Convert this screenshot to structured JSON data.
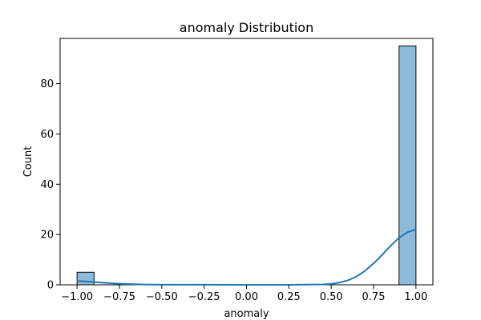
{
  "chart_data": {
    "type": "bar",
    "title": "anomaly Distribution",
    "xlabel": "anomaly",
    "ylabel": "Count",
    "xlim": [
      -1.1,
      1.1
    ],
    "ylim": [
      0,
      98
    ],
    "x_ticks": [
      -1.0,
      -0.75,
      -0.5,
      -0.25,
      0.0,
      0.25,
      0.5,
      0.75,
      1.0
    ],
    "x_tick_labels": [
      "−1.00",
      "−0.75",
      "−0.50",
      "−0.25",
      "0.00",
      "0.25",
      "0.50",
      "0.75",
      "1.00"
    ],
    "y_ticks": [
      0,
      20,
      40,
      60,
      80
    ],
    "y_tick_labels": [
      "0",
      "20",
      "40",
      "60",
      "80"
    ],
    "bins": [
      {
        "x0": -1.0,
        "x1": -0.9,
        "count": 5
      },
      {
        "x0": 0.9,
        "x1": 1.0,
        "count": 95
      }
    ],
    "kde_curve": [
      {
        "x": -1.0,
        "y": 1.5
      },
      {
        "x": -0.9,
        "y": 1.1
      },
      {
        "x": -0.8,
        "y": 0.6
      },
      {
        "x": -0.7,
        "y": 0.3
      },
      {
        "x": -0.6,
        "y": 0.12
      },
      {
        "x": -0.5,
        "y": 0.05
      },
      {
        "x": 0.0,
        "y": 0.0
      },
      {
        "x": 0.25,
        "y": 0.0
      },
      {
        "x": 0.45,
        "y": 0.15
      },
      {
        "x": 0.5,
        "y": 0.35
      },
      {
        "x": 0.55,
        "y": 0.9
      },
      {
        "x": 0.6,
        "y": 1.8
      },
      {
        "x": 0.65,
        "y": 3.3
      },
      {
        "x": 0.7,
        "y": 5.6
      },
      {
        "x": 0.75,
        "y": 8.5
      },
      {
        "x": 0.8,
        "y": 11.9
      },
      {
        "x": 0.85,
        "y": 15.5
      },
      {
        "x": 0.9,
        "y": 18.7
      },
      {
        "x": 0.95,
        "y": 20.9
      },
      {
        "x": 1.0,
        "y": 22.0
      }
    ],
    "colors": {
      "bar_fill": "#8ebbdc",
      "bar_edge": "#000000",
      "kde_line": "#1f77b4",
      "axis": "#000000"
    },
    "grid": false
  }
}
